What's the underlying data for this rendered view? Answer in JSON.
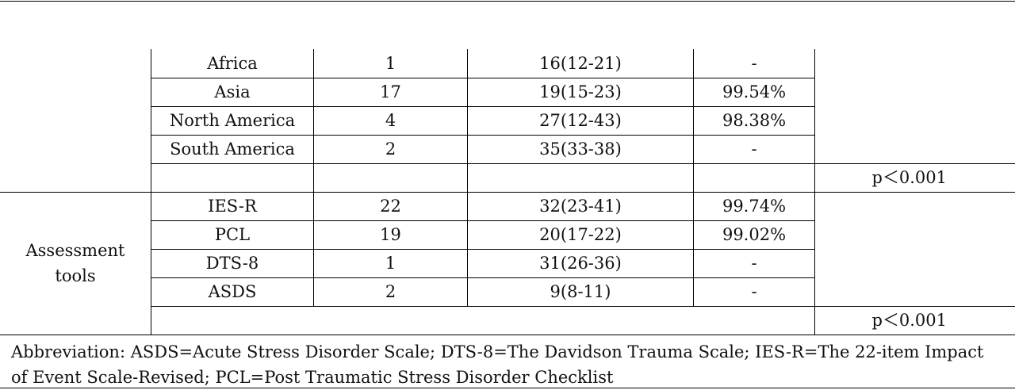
{
  "table": {
    "region_rows": [
      {
        "group": "Africa",
        "n": "1",
        "value": "16(12-21)",
        "i2": "-"
      },
      {
        "group": "Asia",
        "n": "17",
        "value": "19(15-23)",
        "i2": "99.54%"
      },
      {
        "group": "North America",
        "n": "4",
        "value": "27(12-43)",
        "i2": "98.38%"
      },
      {
        "group": "South America",
        "n": "2",
        "value": "35(33-38)",
        "i2": "-"
      }
    ],
    "region_p": "p＜0.001",
    "assessment_label_line1": "Assessment",
    "assessment_label_line2": "tools",
    "assessment_rows": [
      {
        "group": "IES-R",
        "n": "22",
        "value": "32(23-41)",
        "i2": "99.74%"
      },
      {
        "group": "PCL",
        "n": "19",
        "value": "20(17-22)",
        "i2": "99.02%"
      },
      {
        "group": "DTS-8",
        "n": "1",
        "value": "31(26-36)",
        "i2": "-"
      },
      {
        "group": "ASDS",
        "n": "2",
        "value": "9(8-11)",
        "i2": "-"
      }
    ],
    "assessment_p": "p＜0.001"
  },
  "footnote": "Abbreviation: ASDS=Acute Stress Disorder Scale; DTS-8=The Davidson Trauma Scale; IES-R=The 22-item Impact of Event Scale-Revised; PCL=Post Traumatic Stress Disorder Checklist"
}
